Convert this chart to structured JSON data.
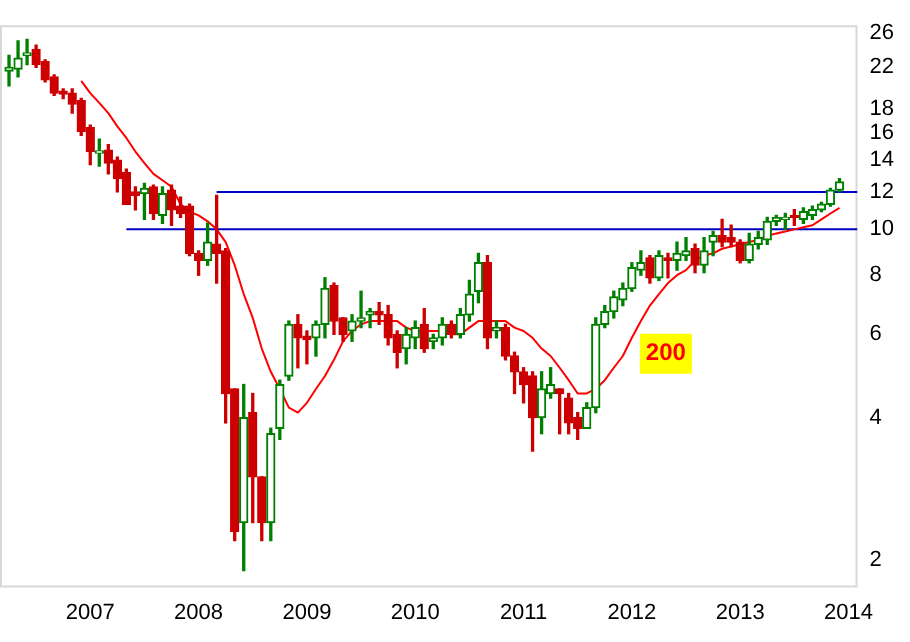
{
  "chart_data": {
    "type": "candlestick",
    "log": true,
    "x": [
      "2006-04",
      "2006-05",
      "2006-06",
      "2006-07",
      "2006-08",
      "2006-09",
      "2006-10",
      "2006-11",
      "2006-12",
      "2007-01",
      "2007-02",
      "2007-03",
      "2007-04",
      "2007-05",
      "2007-06",
      "2007-07",
      "2007-08",
      "2007-09",
      "2007-10",
      "2007-11",
      "2007-12",
      "2008-01",
      "2008-02",
      "2008-03",
      "2008-04",
      "2008-05",
      "2008-06",
      "2008-07",
      "2008-08",
      "2008-09",
      "2008-10",
      "2008-11",
      "2008-12",
      "2009-01",
      "2009-02",
      "2009-03",
      "2009-04",
      "2009-05",
      "2009-06",
      "2009-07",
      "2009-08",
      "2009-09",
      "2009-10",
      "2009-11",
      "2009-12",
      "2010-01",
      "2010-02",
      "2010-03",
      "2010-04",
      "2010-05",
      "2010-06",
      "2010-07",
      "2010-08",
      "2010-09",
      "2010-10",
      "2010-11",
      "2010-12",
      "2011-01",
      "2011-02",
      "2011-03",
      "2011-04",
      "2011-05",
      "2011-06",
      "2011-07",
      "2011-08",
      "2011-09",
      "2011-10",
      "2011-11",
      "2011-12",
      "2012-01",
      "2012-02",
      "2012-03",
      "2012-04",
      "2012-05",
      "2012-06",
      "2012-07",
      "2012-08",
      "2012-09",
      "2012-10",
      "2012-11",
      "2012-12",
      "2013-01",
      "2013-02",
      "2013-03",
      "2013-04",
      "2013-05",
      "2013-06",
      "2013-07",
      "2013-08",
      "2013-09",
      "2013-10",
      "2013-11",
      "2013-12"
    ],
    "ohlc": [
      [
        21.6,
        23.3,
        20.1,
        22.0
      ],
      [
        21.8,
        25.0,
        21.0,
        23.0
      ],
      [
        23.3,
        25.2,
        22.3,
        23.6
      ],
      [
        24.0,
        24.5,
        22.0,
        22.3
      ],
      [
        22.6,
        22.8,
        20.5,
        20.7
      ],
      [
        21.0,
        21.2,
        19.2,
        19.4
      ],
      [
        19.6,
        19.8,
        18.9,
        19.3
      ],
      [
        19.4,
        19.8,
        17.6,
        18.4
      ],
      [
        18.7,
        18.9,
        15.8,
        16.1
      ],
      [
        16.4,
        16.6,
        13.7,
        14.6
      ],
      [
        14.5,
        15.5,
        13.6,
        14.6
      ],
      [
        14.7,
        15.1,
        13.1,
        13.8
      ],
      [
        14.0,
        14.2,
        12.0,
        12.8
      ],
      [
        13.2,
        13.4,
        11.3,
        11.3
      ],
      [
        12.0,
        12.3,
        11.0,
        11.8
      ],
      [
        11.9,
        12.5,
        10.5,
        12.2
      ],
      [
        12.3,
        12.4,
        10.5,
        10.8
      ],
      [
        10.7,
        12.3,
        10.3,
        11.9
      ],
      [
        12.1,
        12.4,
        10.2,
        11.0
      ],
      [
        11.2,
        11.7,
        10.6,
        10.8
      ],
      [
        11.2,
        11.3,
        8.8,
        8.9
      ],
      [
        8.9,
        9.0,
        8.0,
        8.6
      ],
      [
        8.6,
        10.3,
        8.4,
        9.4
      ],
      [
        9.3,
        11.8,
        7.7,
        8.9
      ],
      [
        9.0,
        9.1,
        3.9,
        4.5
      ],
      [
        4.6,
        4.6,
        2.2,
        2.3
      ],
      [
        2.4,
        4.7,
        1.9,
        4.0
      ],
      [
        4.1,
        4.5,
        2.4,
        3.0
      ],
      [
        3.0,
        3.0,
        2.2,
        2.4
      ],
      [
        2.4,
        3.8,
        2.2,
        3.7
      ],
      [
        3.8,
        4.8,
        3.6,
        4.7
      ],
      [
        4.9,
        6.4,
        4.8,
        6.3
      ],
      [
        6.3,
        6.6,
        5.1,
        5.9
      ],
      [
        5.95,
        6.1,
        5.2,
        5.85
      ],
      [
        5.9,
        6.4,
        5.4,
        6.3
      ],
      [
        6.3,
        7.9,
        5.9,
        7.5
      ],
      [
        7.6,
        7.7,
        6.0,
        6.4
      ],
      [
        6.5,
        6.5,
        5.8,
        6.0
      ],
      [
        6.1,
        6.6,
        5.8,
        6.4
      ],
      [
        6.4,
        7.4,
        6.2,
        6.5
      ],
      [
        6.6,
        6.8,
        6.2,
        6.7
      ],
      [
        6.7,
        7.0,
        6.3,
        6.6
      ],
      [
        6.6,
        6.9,
        5.7,
        5.9
      ],
      [
        6.0,
        6.1,
        5.1,
        5.5
      ],
      [
        5.6,
        6.2,
        5.2,
        6.0
      ],
      [
        5.9,
        6.4,
        5.6,
        6.2
      ],
      [
        6.3,
        6.8,
        5.5,
        5.6
      ],
      [
        5.8,
        6.0,
        5.6,
        5.9
      ],
      [
        5.9,
        6.5,
        5.7,
        6.3
      ],
      [
        6.3,
        6.4,
        5.9,
        6.0
      ],
      [
        6.0,
        6.8,
        5.9,
        6.6
      ],
      [
        6.6,
        7.8,
        6.4,
        7.3
      ],
      [
        7.4,
        8.9,
        7.0,
        8.5
      ],
      [
        8.5,
        8.8,
        5.6,
        5.9
      ],
      [
        6.1,
        6.4,
        5.9,
        6.2
      ],
      [
        6.2,
        6.3,
        5.3,
        5.4
      ],
      [
        5.4,
        5.5,
        4.5,
        5.0
      ],
      [
        5.0,
        5.1,
        4.3,
        4.7
      ],
      [
        4.9,
        5.0,
        3.4,
        4.0
      ],
      [
        4.0,
        5.0,
        3.7,
        4.6
      ],
      [
        4.5,
        5.1,
        4.4,
        4.7
      ],
      [
        4.6,
        4.6,
        3.7,
        4.5
      ],
      [
        4.4,
        4.5,
        3.7,
        3.9
      ],
      [
        4.0,
        4.1,
        3.6,
        3.8
      ],
      [
        3.8,
        4.3,
        3.8,
        4.2
      ],
      [
        4.2,
        6.5,
        4.1,
        6.3
      ],
      [
        6.3,
        6.9,
        6.2,
        6.7
      ],
      [
        6.7,
        7.4,
        6.5,
        7.2
      ],
      [
        7.1,
        7.7,
        6.9,
        7.5
      ],
      [
        7.5,
        8.5,
        7.4,
        8.3
      ],
      [
        8.2,
        9.0,
        8.0,
        8.5
      ],
      [
        8.7,
        8.8,
        7.7,
        7.9
      ],
      [
        7.9,
        9.0,
        7.8,
        8.8
      ],
      [
        8.7,
        8.9,
        7.9,
        8.6
      ],
      [
        8.6,
        9.4,
        8.2,
        8.9
      ],
      [
        8.8,
        9.6,
        8.6,
        9.0
      ],
      [
        9.1,
        9.3,
        8.1,
        8.4
      ],
      [
        8.4,
        9.6,
        8.1,
        9.0
      ],
      [
        9.4,
        9.9,
        8.8,
        9.7
      ],
      [
        9.7,
        10.5,
        9.2,
        9.4
      ],
      [
        9.6,
        10.2,
        9.2,
        9.4
      ],
      [
        9.4,
        9.5,
        8.5,
        8.6
      ],
      [
        8.6,
        9.8,
        8.5,
        9.3
      ],
      [
        9.3,
        9.9,
        9.1,
        9.6
      ],
      [
        9.5,
        10.6,
        9.3,
        10.4
      ],
      [
        10.4,
        10.7,
        10.2,
        10.6
      ],
      [
        10.5,
        10.8,
        10.0,
        10.6
      ],
      [
        10.7,
        11.0,
        10.2,
        10.6
      ],
      [
        10.5,
        11.1,
        10.3,
        10.9
      ],
      [
        10.7,
        11.2,
        10.5,
        11.0
      ],
      [
        11.0,
        11.4,
        10.9,
        11.3
      ],
      [
        11.3,
        12.2,
        11.2,
        12.1
      ],
      [
        12.1,
        12.8,
        12.0,
        12.6
      ]
    ],
    "series": [
      {
        "type": "line",
        "name": "200",
        "color": "#ff0000",
        "x": [
          "2006-12",
          "2007-01",
          "2007-02",
          "2007-03",
          "2007-04",
          "2007-05",
          "2007-06",
          "2007-07",
          "2007-08",
          "2007-09",
          "2007-10",
          "2007-11",
          "2007-12",
          "2008-01",
          "2008-02",
          "2008-03",
          "2008-04",
          "2008-05",
          "2008-06",
          "2008-07",
          "2008-08",
          "2008-09",
          "2008-10",
          "2008-11",
          "2008-12",
          "2009-01",
          "2009-02",
          "2009-03",
          "2009-04",
          "2009-05",
          "2009-06",
          "2009-07",
          "2009-08",
          "2009-09",
          "2009-10",
          "2009-11",
          "2009-12",
          "2010-01",
          "2010-02",
          "2010-03",
          "2010-04",
          "2010-05",
          "2010-06",
          "2010-07",
          "2010-08",
          "2010-09",
          "2010-10",
          "2010-11",
          "2010-12",
          "2011-01",
          "2011-02",
          "2011-03",
          "2011-04",
          "2011-05",
          "2011-06",
          "2011-07",
          "2011-08",
          "2011-09",
          "2011-10",
          "2011-11",
          "2011-12",
          "2012-01",
          "2012-02",
          "2012-03",
          "2012-04",
          "2012-05",
          "2012-06",
          "2012-07",
          "2012-08",
          "2012-09",
          "2012-10",
          "2012-11",
          "2012-12",
          "2013-01",
          "2013-02",
          "2013-03",
          "2013-04",
          "2013-05",
          "2013-06",
          "2013-07",
          "2013-08",
          "2013-09",
          "2013-10",
          "2013-11",
          "2013-12"
        ],
        "values": [
          20.6,
          19.4,
          18.5,
          17.6,
          16.5,
          15.6,
          14.6,
          13.8,
          13.1,
          12.7,
          12.3,
          11.3,
          10.9,
          10.7,
          10.4,
          10.0,
          9.4,
          8.4,
          7.3,
          6.5,
          5.6,
          5.0,
          4.6,
          4.2,
          4.1,
          4.3,
          4.6,
          4.9,
          5.3,
          5.8,
          6.1,
          6.3,
          6.4,
          6.4,
          6.4,
          6.4,
          6.2,
          6.1,
          6.1,
          6.1,
          6.1,
          6.0,
          6.0,
          6.2,
          6.4,
          6.4,
          6.4,
          6.4,
          6.2,
          6.1,
          5.9,
          5.6,
          5.4,
          5.1,
          4.8,
          4.5,
          4.5,
          4.6,
          4.8,
          5.1,
          5.4,
          5.9,
          6.4,
          6.9,
          7.3,
          7.7,
          8.0,
          8.2,
          8.6,
          8.8,
          8.9,
          9.1,
          9.2,
          9.3,
          9.4,
          9.5,
          9.7,
          9.8,
          9.9,
          10.0,
          10.1,
          10.2,
          10.5,
          10.8,
          11.1
        ]
      },
      {
        "type": "line",
        "color": "#0000c0",
        "x": [
          "2008-03",
          "2014-02"
        ],
        "values": [
          12,
          12
        ]
      },
      {
        "type": "line",
        "color": "#0000c0",
        "x": [
          "2007-05",
          "2014-02"
        ],
        "values": [
          10,
          10
        ]
      }
    ],
    "xlim": [
      "2006-03",
      "2014-02"
    ],
    "xticks": [
      "2007",
      "2008",
      "2009",
      "2010",
      "2011",
      "2012",
      "2013",
      "2014"
    ],
    "ylim": [
      1.75,
      27
    ],
    "yticks": [
      2,
      4,
      6,
      8,
      10,
      12,
      14,
      16,
      18,
      22,
      26
    ],
    "grid": false,
    "legend": false
  }
}
